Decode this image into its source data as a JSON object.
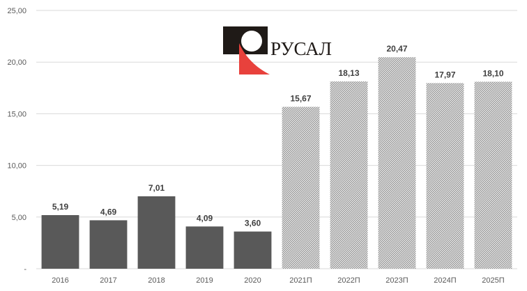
{
  "chart_data": {
    "type": "bar",
    "categories": [
      "2016",
      "2017",
      "2018",
      "2019",
      "2020",
      "2021П",
      "2022П",
      "2023П",
      "2024П",
      "2025П"
    ],
    "values": [
      5.19,
      4.69,
      7.01,
      4.09,
      3.6,
      15.67,
      18.13,
      20.47,
      17.97,
      18.1
    ],
    "value_labels": [
      "5,19",
      "4,69",
      "7,01",
      "4,09",
      "3,60",
      "15,67",
      "18,13",
      "20,47",
      "17,97",
      "18,10"
    ],
    "forecast": [
      false,
      false,
      false,
      false,
      false,
      true,
      true,
      true,
      true,
      true
    ],
    "y_ticks": [
      0,
      5,
      10,
      15,
      20,
      25
    ],
    "y_tick_labels": [
      "-",
      "5,00",
      "10,00",
      "15,00",
      "20,00",
      "25,00"
    ],
    "ylim": [
      0,
      25
    ],
    "grid": true,
    "colors": {
      "actual": "#595959",
      "forecast_hatch": "#7f7f7f",
      "grid": "#d9d9d9"
    }
  },
  "logo": {
    "text": "РУСАЛ",
    "colors": {
      "dark": "#1f1a17",
      "red": "#e8413c"
    }
  }
}
